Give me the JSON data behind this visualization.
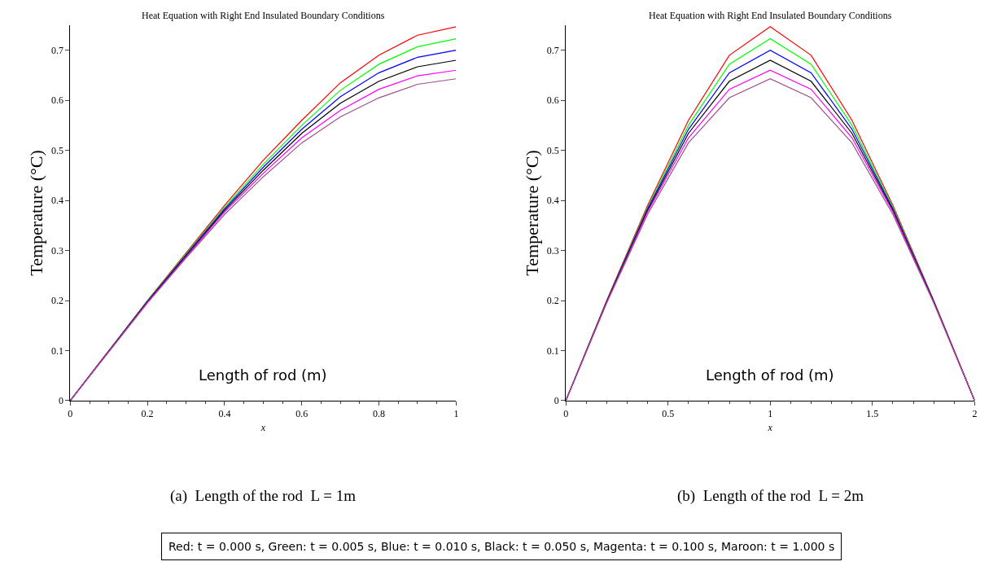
{
  "chart_data": [
    {
      "type": "line",
      "title": "Heat Equation with Right End Insulated Boundary Conditions",
      "xlabel": "x",
      "ylabel": "Temperature (°C)",
      "x": [
        0,
        0.2,
        0.3,
        0.4,
        0.5,
        0.6,
        0.7,
        0.8,
        0.9,
        1
      ],
      "series": [
        {
          "color": "#ff0000",
          "values": [
            0,
            0.2,
            0.295,
            0.39,
            0.48,
            0.56,
            0.635,
            0.69,
            0.73,
            0.747
          ]
        },
        {
          "color": "#00ff00",
          "values": [
            0,
            0.199,
            0.293,
            0.386,
            0.472,
            0.55,
            0.62,
            0.672,
            0.707,
            0.723
          ]
        },
        {
          "color": "#0000ff",
          "values": [
            0,
            0.198,
            0.291,
            0.383,
            0.466,
            0.542,
            0.607,
            0.655,
            0.686,
            0.7
          ]
        },
        {
          "color": "#000000",
          "values": [
            0,
            0.197,
            0.289,
            0.38,
            0.46,
            0.534,
            0.594,
            0.638,
            0.667,
            0.68
          ]
        },
        {
          "color": "#ff00ff",
          "values": [
            0,
            0.196,
            0.287,
            0.377,
            0.454,
            0.525,
            0.58,
            0.622,
            0.649,
            0.66
          ]
        },
        {
          "color": "#a0508c",
          "values": [
            0,
            0.195,
            0.285,
            0.372,
            0.447,
            0.515,
            0.567,
            0.605,
            0.632,
            0.643
          ]
        }
      ],
      "xlim": [
        0,
        1
      ],
      "xticks": [
        0,
        0.2,
        0.4,
        0.6,
        0.8,
        1
      ],
      "ylim": [
        0,
        0.75
      ],
      "yticks": [
        0,
        0.1,
        0.2,
        0.3,
        0.4,
        0.5,
        0.6,
        0.7
      ],
      "line_style": "solid",
      "annotations": [
        "Length of rod (m)",
        "(a)  Length of the rod  L = 1m"
      ]
    },
    {
      "type": "line",
      "title": "Heat Equation with Right End Insulated Boundary Conditions",
      "xlabel": "x",
      "ylabel": "Temperature (°C)",
      "x": [
        0,
        0.2,
        0.4,
        0.6,
        0.8,
        1,
        1.2,
        1.4,
        1.6,
        1.8,
        2
      ],
      "series": [
        {
          "color": "#ff0000",
          "values": [
            0,
            0.2,
            0.39,
            0.56,
            0.69,
            0.747,
            0.69,
            0.56,
            0.39,
            0.2,
            0
          ]
        },
        {
          "color": "#00ff00",
          "values": [
            0,
            0.199,
            0.386,
            0.55,
            0.672,
            0.723,
            0.672,
            0.55,
            0.386,
            0.199,
            0
          ]
        },
        {
          "color": "#0000ff",
          "values": [
            0,
            0.198,
            0.383,
            0.542,
            0.655,
            0.7,
            0.655,
            0.542,
            0.383,
            0.198,
            0
          ]
        },
        {
          "color": "#000000",
          "values": [
            0,
            0.197,
            0.38,
            0.534,
            0.638,
            0.68,
            0.638,
            0.534,
            0.38,
            0.197,
            0
          ]
        },
        {
          "color": "#ff00ff",
          "values": [
            0,
            0.196,
            0.377,
            0.525,
            0.622,
            0.66,
            0.622,
            0.525,
            0.377,
            0.196,
            0
          ]
        },
        {
          "color": "#a0508c",
          "values": [
            0,
            0.195,
            0.372,
            0.515,
            0.605,
            0.643,
            0.605,
            0.515,
            0.372,
            0.195,
            0
          ]
        }
      ],
      "xlim": [
        0,
        2
      ],
      "xticks": [
        0,
        0.5,
        1,
        1.5,
        2
      ],
      "ylim": [
        0,
        0.75
      ],
      "yticks": [
        0,
        0.1,
        0.2,
        0.3,
        0.4,
        0.5,
        0.6,
        0.7
      ],
      "line_style": "solid",
      "annotations": [
        "Length of rod (m)",
        "(b)  Length of the rod  L = 2m",
        "Red: t = 0.000 s, Green: t = 0.005 s, Blue: t = 0.010 s, Black: t = 0.050 s, Magenta: t = 0.100 s, Maroon: t = 1.000 s"
      ]
    }
  ]
}
